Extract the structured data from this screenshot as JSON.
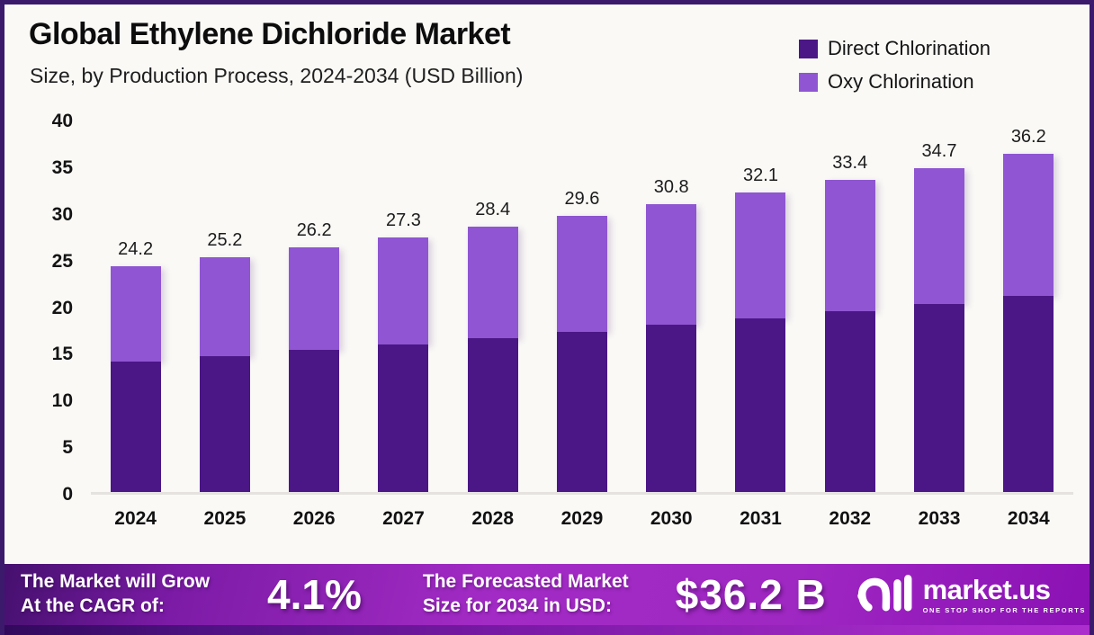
{
  "header": {
    "title": "Global Ethylene Dichloride Market",
    "subtitle": "Size, by Production Process, 2024-2034 (USD Billion)"
  },
  "legend": [
    {
      "label": "Direct Chlorination",
      "color": "#4B1786"
    },
    {
      "label": "Oxy Chlorination",
      "color": "#8F55D2"
    }
  ],
  "chart_data": {
    "type": "bar",
    "stacked": true,
    "title": "Global Ethylene Dichloride Market Size, by Production Process, 2024-2034 (USD Billion)",
    "categories": [
      "2024",
      "2025",
      "2026",
      "2027",
      "2028",
      "2029",
      "2030",
      "2031",
      "2032",
      "2033",
      "2034"
    ],
    "series": [
      {
        "name": "Direct Chlorination",
        "color": "#4B1786",
        "values": [
          14.0,
          14.6,
          15.2,
          15.8,
          16.5,
          17.2,
          17.9,
          18.6,
          19.4,
          20.1,
          21.0
        ]
      },
      {
        "name": "Oxy Chlorination",
        "color": "#8F55D2",
        "values": [
          10.2,
          10.6,
          11.0,
          11.5,
          11.9,
          12.4,
          12.9,
          13.5,
          14.0,
          14.6,
          15.2
        ]
      }
    ],
    "totals": [
      24.2,
      25.2,
      26.2,
      27.3,
      28.4,
      29.6,
      30.8,
      32.1,
      33.4,
      34.7,
      36.2
    ],
    "total_labels": [
      "24.2",
      "25.2",
      "26.2",
      "27.3",
      "28.4",
      "29.6",
      "30.8",
      "32.1",
      "33.4",
      "34.7",
      "36.2"
    ],
    "xlabel": "",
    "ylabel": "",
    "ylim": [
      0,
      40
    ],
    "yticks": [
      0,
      5,
      10,
      15,
      20,
      25,
      30,
      35,
      40
    ],
    "grid": false,
    "legend_position": "top-right"
  },
  "footer": {
    "cagr_label": [
      "The Market will Grow",
      "At the CAGR of:"
    ],
    "cagr_value": "4.1%",
    "forecast_label": [
      "The Forecasted Market",
      "Size for 2034 in USD:"
    ],
    "forecast_value": "$36.2 B",
    "brand": {
      "name": "market.us",
      "tagline": "ONE STOP SHOP FOR THE REPORTS"
    }
  },
  "colors": {
    "page_background": "#FAF9F6",
    "page_border": "#3B1A6B",
    "axis_line": "#E5E2E0",
    "banner_gradient_start": "#45106E",
    "banner_gradient_mid": "#A32BC5",
    "banner_gradient_end": "#8A10B4"
  }
}
